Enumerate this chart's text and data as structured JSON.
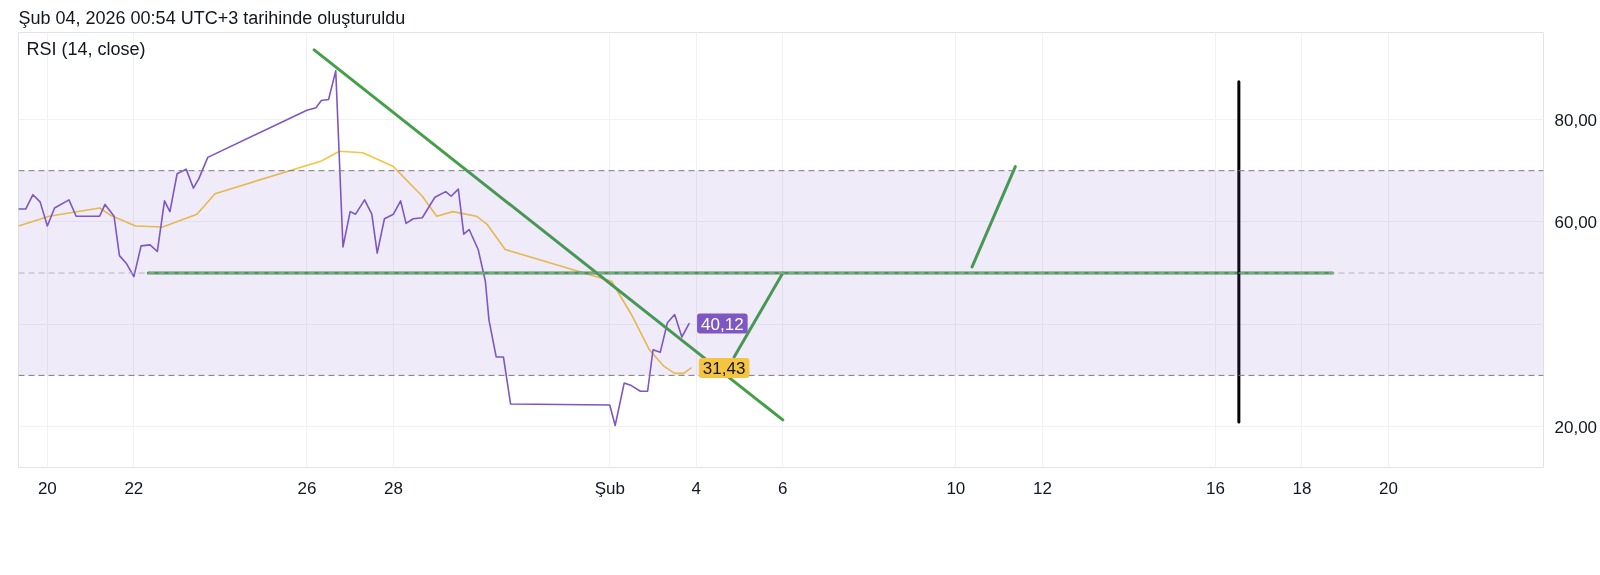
{
  "chart_data": {
    "type": "line",
    "title": "RSI (14, close)",
    "annotations": [
      "Şub 04, 2026 00:54 UTC+3 tarihinde oluşturuldu"
    ],
    "xlim": [
      "2026-01-19T08:00",
      "2026-02-23T14:00"
    ],
    "ylim": [
      12,
      97
    ],
    "xticks": [
      {
        "value": "2026-01-20",
        "label": "20"
      },
      {
        "value": "2026-01-22",
        "label": "22"
      },
      {
        "value": "2026-01-26",
        "label": "26"
      },
      {
        "value": "2026-01-28",
        "label": "28"
      },
      {
        "value": "2026-02-02",
        "label": "Şub"
      },
      {
        "value": "2026-02-04",
        "label": "4"
      },
      {
        "value": "2026-02-06",
        "label": "6"
      },
      {
        "value": "2026-02-10",
        "label": "10"
      },
      {
        "value": "2026-02-12",
        "label": "12"
      },
      {
        "value": "2026-02-16",
        "label": "16"
      },
      {
        "value": "2026-02-18",
        "label": "18"
      },
      {
        "value": "2026-02-20",
        "label": "20"
      }
    ],
    "yticks": [
      {
        "value": 20,
        "label": "20,00"
      },
      {
        "value": 40,
        "label": null
      },
      {
        "value": 60,
        "label": "60,00"
      },
      {
        "value": 80,
        "label": "80,00"
      }
    ],
    "grid": true,
    "line_style": "solid",
    "bands": [
      {
        "axis": "y",
        "from": 30,
        "to": 70,
        "color": "#7e57c2"
      }
    ],
    "ref_lines": [
      {
        "axis": "y",
        "value": 70,
        "color": "#787b86",
        "line_style": "dashed"
      },
      {
        "axis": "y",
        "value": 50,
        "color": "#b2b5be",
        "line_style": "dashed"
      },
      {
        "axis": "y",
        "value": 30,
        "color": "#787b86",
        "line_style": "dashed"
      }
    ],
    "series": [
      {
        "color": "#f5c542",
        "x": [
          "2026-01-19T08:00",
          "2026-01-20T01:00",
          "2026-01-21T05:00",
          "2026-01-21T11:00",
          "2026-01-22T01:00",
          "2026-01-22T16:00",
          "2026-01-23T11:00",
          "2026-01-23T21:00",
          "2026-01-26T08:00",
          "2026-01-26T18:00",
          "2026-01-27T07:00",
          "2026-01-28T00:00",
          "2026-01-28T16:00",
          "2026-01-29T00:00",
          "2026-01-29T09:00",
          "2026-01-29T22:00",
          "2026-01-30T04:00",
          "2026-01-30T14:00",
          "2026-02-02T01:00",
          "2026-02-02T12:00",
          "2026-02-02T22:00",
          "2026-02-03T06:00",
          "2026-02-03T12:00",
          "2026-02-03T17:00",
          "2026-02-03T21:00"
        ],
        "values": [
          59.2,
          61.1,
          62.7,
          61.3,
          59.2,
          59.0,
          61.5,
          65.5,
          71.9,
          73.8,
          73.5,
          70.8,
          65.0,
          61.1,
          62.0,
          61.1,
          59.5,
          54.6,
          48.4,
          41.9,
          35.0,
          31.8,
          30.4,
          30.4,
          31.43
        ],
        "value_labels": [
          null,
          null,
          null,
          null,
          null,
          null,
          null,
          null,
          null,
          null,
          null,
          null,
          null,
          null,
          null,
          null,
          null,
          null,
          null,
          null,
          null,
          null,
          null,
          null,
          "31,43"
        ]
      },
      {
        "color": "#7e57c2",
        "x": [
          "2026-01-19T08:00",
          "2026-01-19T12:00",
          "2026-01-19T16:00",
          "2026-01-19T20:00",
          "2026-01-20T00:00",
          "2026-01-20T04:00",
          "2026-01-20T12:00",
          "2026-01-20T16:00",
          "2026-01-21T05:00",
          "2026-01-21T08:00",
          "2026-01-21T13:00",
          "2026-01-21T16:00",
          "2026-01-21T20:00",
          "2026-01-22T00:00",
          "2026-01-22T04:00",
          "2026-01-22T09:00",
          "2026-01-22T13:00",
          "2026-01-22T17:00",
          "2026-01-22T20:00",
          "2026-01-23T00:00",
          "2026-01-23T05:00",
          "2026-01-23T09:00",
          "2026-01-23T12:00",
          "2026-01-23T17:00",
          "2026-01-26T00:00",
          "2026-01-26T05:00",
          "2026-01-26T08:00",
          "2026-01-26T12:00",
          "2026-01-26T16:00",
          "2026-01-26T20:00",
          "2026-01-27T00:00",
          "2026-01-27T03:00",
          "2026-01-27T08:00",
          "2026-01-27T12:00",
          "2026-01-27T15:00",
          "2026-01-27T19:00",
          "2026-01-28T00:00",
          "2026-01-28T04:00",
          "2026-01-28T07:00",
          "2026-01-28T11:00",
          "2026-01-28T16:00",
          "2026-01-28T23:00",
          "2026-01-29T05:00",
          "2026-01-29T08:00",
          "2026-01-29T12:00",
          "2026-01-29T15:00",
          "2026-01-29T18:00",
          "2026-01-29T23:00",
          "2026-01-30T03:00",
          "2026-01-30T05:00",
          "2026-01-30T09:00",
          "2026-01-30T13:00",
          "2026-01-30T17:00",
          "2026-02-02T00:00",
          "2026-02-02T03:00",
          "2026-02-02T08:00",
          "2026-02-02T12:00",
          "2026-02-02T17:00",
          "2026-02-02T21:00",
          "2026-02-03T00:00",
          "2026-02-03T04:00",
          "2026-02-03T08:00",
          "2026-02-03T12:00",
          "2026-02-03T16:00",
          "2026-02-03T20:00"
        ],
        "values": [
          62.5,
          62.5,
          65.3,
          63.9,
          59.2,
          62.7,
          64.3,
          61.1,
          61.1,
          63.4,
          61.1,
          53.4,
          51.8,
          49.3,
          55.3,
          55.5,
          54.2,
          64.1,
          62.0,
          69.4,
          70.3,
          66.6,
          68.4,
          72.6,
          81.8,
          82.3,
          83.7,
          83.9,
          89.5,
          55.1,
          62.0,
          61.5,
          64.3,
          61.5,
          53.9,
          60.6,
          61.5,
          64.1,
          59.7,
          60.6,
          60.8,
          64.8,
          65.9,
          65.0,
          66.4,
          57.6,
          58.5,
          54.6,
          48.4,
          40.8,
          33.6,
          33.6,
          24.4,
          24.2,
          20.2,
          28.5,
          28.0,
          26.9,
          26.9,
          35.0,
          34.5,
          40.3,
          41.9,
          37.5,
          40.12
        ],
        "value_labels": [
          null,
          null,
          null,
          null,
          null,
          null,
          null,
          null,
          null,
          null,
          null,
          null,
          null,
          null,
          null,
          null,
          null,
          null,
          null,
          null,
          null,
          null,
          null,
          null,
          null,
          null,
          null,
          null,
          null,
          null,
          null,
          null,
          null,
          null,
          null,
          null,
          null,
          null,
          null,
          null,
          null,
          null,
          null,
          null,
          null,
          null,
          null,
          null,
          null,
          null,
          null,
          null,
          null,
          null,
          null,
          null,
          null,
          null,
          null,
          null,
          null,
          null,
          null,
          null,
          "40,12"
        ]
      },
      {
        "type": "line",
        "color": "#43a047",
        "x": [
          "2026-01-22T08:00",
          "2026-02-18T17:00"
        ],
        "values": [
          50,
          50
        ]
      },
      {
        "type": "line",
        "color": "#43a047",
        "x": [
          "2026-01-26T04:00",
          "2026-02-06T00:00"
        ],
        "values": [
          93.6,
          21.3
        ]
      },
      {
        "type": "line",
        "color": "#43a047",
        "x": [
          "2026-02-04T21:00",
          "2026-02-06T00:00"
        ],
        "values": [
          33.6,
          50
        ]
      },
      {
        "type": "line",
        "color": "#43a047",
        "x": [
          "2026-02-10T09:00",
          "2026-02-11T09:00"
        ],
        "values": [
          51.2,
          70.8
        ]
      },
      {
        "type": "line",
        "color": "#000000",
        "x": [
          "2026-02-16T13:00",
          "2026-02-16T13:00"
        ],
        "values": [
          87.4,
          20.9
        ]
      }
    ]
  }
}
